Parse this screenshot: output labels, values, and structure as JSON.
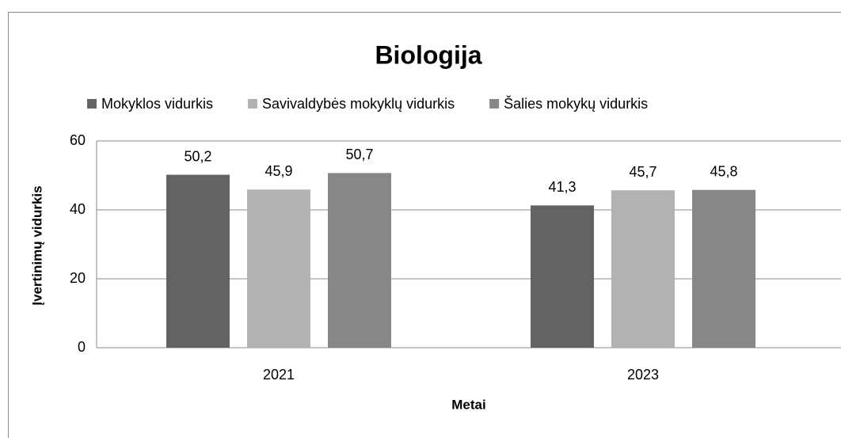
{
  "chart_data": {
    "type": "bar",
    "title": "Biologija",
    "x_label": "Metai",
    "y_label": "Įvertinimų vidurkis",
    "categories": [
      "2021",
      "2023"
    ],
    "series": [
      {
        "name": "Mokyklos vidurkis",
        "color": "#636363",
        "values": [
          50.2,
          41.3
        ],
        "value_labels": [
          "50,2",
          "41,3"
        ]
      },
      {
        "name": "Savivaldybės mokyklų vidurkis",
        "color": "#b2b2b2",
        "values": [
          45.9,
          45.7
        ],
        "value_labels": [
          "45,9",
          "45,7"
        ]
      },
      {
        "name": "Šalies mokykų vidurkis",
        "color": "#878787",
        "values": [
          50.7,
          45.8
        ],
        "value_labels": [
          "50,7",
          "45,8"
        ]
      }
    ],
    "ylim": [
      0,
      60
    ],
    "yticks": [
      0,
      20,
      40,
      60
    ],
    "grid": true,
    "legend": "top"
  }
}
